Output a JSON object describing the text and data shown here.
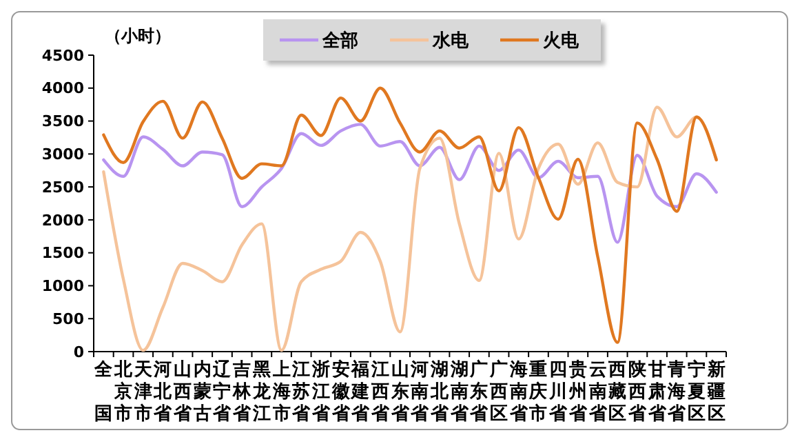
{
  "chart_data": {
    "type": "line",
    "ylabel": "（小时）",
    "categories": [
      "全国",
      "北京市",
      "天津市",
      "河北省",
      "山西省",
      "内蒙古",
      "辽宁省",
      "吉林省",
      "黑龙江",
      "上海市",
      "江苏省",
      "浙江省",
      "安徽省",
      "福建省",
      "江西省",
      "山东省",
      "河南省",
      "湖北省",
      "湖南省",
      "广东省",
      "广西区",
      "海南省",
      "重庆市",
      "四川省",
      "贵州省",
      "云南省",
      "西藏区",
      "陕西省",
      "甘肃省",
      "青海省",
      "宁夏区",
      "新疆区"
    ],
    "series": [
      {
        "name": "全部",
        "color": "#b894f0",
        "values": [
          2910,
          2660,
          3260,
          3070,
          2820,
          3030,
          2990,
          2200,
          2500,
          2780,
          3310,
          3130,
          3350,
          3450,
          3120,
          3190,
          2820,
          3100,
          2610,
          3120,
          2750,
          3060,
          2640,
          2890,
          2640,
          2660,
          1660,
          2980,
          2360,
          2200,
          2700,
          2420
        ]
      },
      {
        "name": "水电",
        "color": "#f5c39a",
        "values": [
          2730,
          1100,
          20,
          670,
          1340,
          1230,
          1060,
          1620,
          1940,
          20,
          1060,
          1250,
          1370,
          1810,
          1370,
          300,
          2780,
          3240,
          1940,
          1080,
          3010,
          1710,
          2780,
          3150,
          2540,
          3170,
          2570,
          2500,
          3710,
          3260,
          3560,
          2920
        ]
      },
      {
        "name": "火电",
        "color": "#e07820",
        "values": [
          3290,
          2870,
          3490,
          3800,
          3240,
          3790,
          3240,
          2630,
          2850,
          2820,
          3590,
          3280,
          3850,
          3500,
          4000,
          3470,
          3030,
          3350,
          3090,
          3260,
          2440,
          3400,
          2640,
          2010,
          2920,
          1440,
          140,
          3470,
          2920,
          2130,
          3560,
          2910
        ]
      }
    ],
    "ylim": [
      0,
      4500
    ],
    "yticks": [
      0,
      500,
      1000,
      1500,
      2000,
      2500,
      3000,
      3500,
      4000,
      4500
    ],
    "grid": false,
    "legend": "top",
    "marker": "none",
    "line_style": "solid"
  }
}
